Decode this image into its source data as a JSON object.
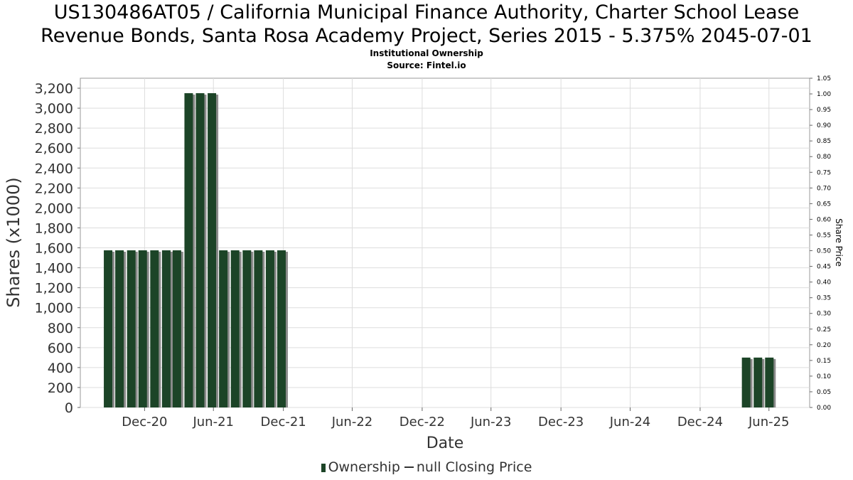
{
  "header": {
    "title_line1": "US130486AT05 / California Municipal Finance Authority, Charter School Lease",
    "title_line2": "Revenue Bonds, Santa Rosa Academy Project, Series 2015 - 5.375% 2045-07-01",
    "subtitle": "Institutional Ownership",
    "source": "Source: Fintel.io"
  },
  "legend": {
    "ownership": "Ownership",
    "price": "null Closing Price"
  },
  "colors": {
    "bar": "#1c4427",
    "bar_shadow": "#8a8a8a",
    "grid": "#dddddd",
    "axis_text": "#333333"
  },
  "chart_data": {
    "type": "bar",
    "xlabel": "Date",
    "ylabel": "Shares (x1000)",
    "ylabel_right": "Share Price",
    "ylim": [
      0,
      3300
    ],
    "y_ticks": [
      0,
      200,
      400,
      600,
      800,
      1000,
      1200,
      1400,
      1600,
      1800,
      2000,
      2200,
      2400,
      2600,
      2800,
      3000,
      3200
    ],
    "y_right_lim": [
      0,
      1.05
    ],
    "y_right_ticks": [
      "0.00",
      "0.05",
      "0.10",
      "0.15",
      "0.20",
      "0.25",
      "0.30",
      "0.35",
      "0.40",
      "0.45",
      "0.50",
      "0.55",
      "0.60",
      "0.65",
      "0.70",
      "0.75",
      "0.80",
      "0.85",
      "0.90",
      "0.95",
      "1.00",
      "1.05"
    ],
    "x_range": [
      "2020-07-15",
      "2025-10-15"
    ],
    "x_ticks": [
      {
        "label": "Dec-20",
        "date": "2020-12-31"
      },
      {
        "label": "Jun-21",
        "date": "2021-06-30"
      },
      {
        "label": "Dec-21",
        "date": "2021-12-31"
      },
      {
        "label": "Jun-22",
        "date": "2022-06-30"
      },
      {
        "label": "Dec-22",
        "date": "2022-12-31"
      },
      {
        "label": "Jun-23",
        "date": "2023-06-30"
      },
      {
        "label": "Dec-23",
        "date": "2023-12-31"
      },
      {
        "label": "Jun-24",
        "date": "2024-06-30"
      },
      {
        "label": "Dec-24",
        "date": "2024-12-31"
      },
      {
        "label": "Jun-25",
        "date": "2025-06-30"
      }
    ],
    "grid": true,
    "legend_position": "bottom",
    "series": [
      {
        "name": "Ownership",
        "points": [
          {
            "x": "2020-09-26",
            "y": 1575
          },
          {
            "x": "2020-10-26",
            "y": 1575
          },
          {
            "x": "2020-11-26",
            "y": 1575
          },
          {
            "x": "2020-12-26",
            "y": 1575
          },
          {
            "x": "2021-01-26",
            "y": 1575
          },
          {
            "x": "2021-02-26",
            "y": 1575
          },
          {
            "x": "2021-03-26",
            "y": 1575
          },
          {
            "x": "2021-04-26",
            "y": 3150
          },
          {
            "x": "2021-05-26",
            "y": 3150
          },
          {
            "x": "2021-06-26",
            "y": 3150
          },
          {
            "x": "2021-07-26",
            "y": 1575
          },
          {
            "x": "2021-08-26",
            "y": 1575
          },
          {
            "x": "2021-09-26",
            "y": 1575
          },
          {
            "x": "2021-10-26",
            "y": 1575
          },
          {
            "x": "2021-11-26",
            "y": 1575
          },
          {
            "x": "2021-12-26",
            "y": 1575
          },
          {
            "x": "2025-05-01",
            "y": 500
          },
          {
            "x": "2025-06-01",
            "y": 500
          },
          {
            "x": "2025-07-01",
            "y": 500
          }
        ]
      }
    ]
  }
}
